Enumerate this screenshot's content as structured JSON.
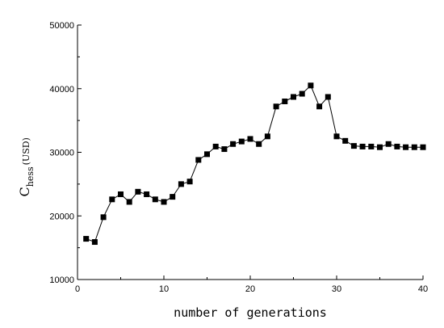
{
  "chart_data": {
    "type": "scatter",
    "title": "",
    "xlabel": "number of generations",
    "ylabel": {
      "main": "C",
      "subscript": "hess",
      "unit": "(USD)"
    },
    "xlim": [
      0,
      40
    ],
    "ylim": [
      10000,
      50000
    ],
    "xticks": [
      0,
      10,
      20,
      30,
      40
    ],
    "yticks": [
      10000,
      20000,
      30000,
      40000,
      50000
    ],
    "grid": false,
    "legend": "none",
    "marker": "square",
    "connected": true,
    "series": [
      {
        "x": [
          1,
          2,
          3,
          4,
          5,
          6,
          7,
          8,
          9,
          10,
          11,
          12,
          13,
          14,
          15,
          16,
          17,
          18,
          19,
          20,
          21,
          22,
          23,
          24,
          25,
          26,
          27,
          28,
          29,
          30,
          31,
          32,
          33,
          34,
          35,
          36,
          37,
          38,
          39,
          40
        ],
        "y": [
          16400,
          15900,
          19800,
          22600,
          23400,
          22200,
          23800,
          23400,
          22600,
          22200,
          23000,
          25000,
          25400,
          28800,
          29700,
          30900,
          30500,
          31300,
          31700,
          32100,
          31300,
          32500,
          37200,
          38000,
          38700,
          39200,
          40500,
          37200,
          38700,
          32500,
          31800,
          31000,
          30900,
          30900,
          30800,
          31300,
          30900,
          30800,
          30800,
          30800
        ]
      }
    ],
    "colors": {
      "axis": "#000000",
      "marker": "#000000",
      "line": "#000000"
    }
  }
}
